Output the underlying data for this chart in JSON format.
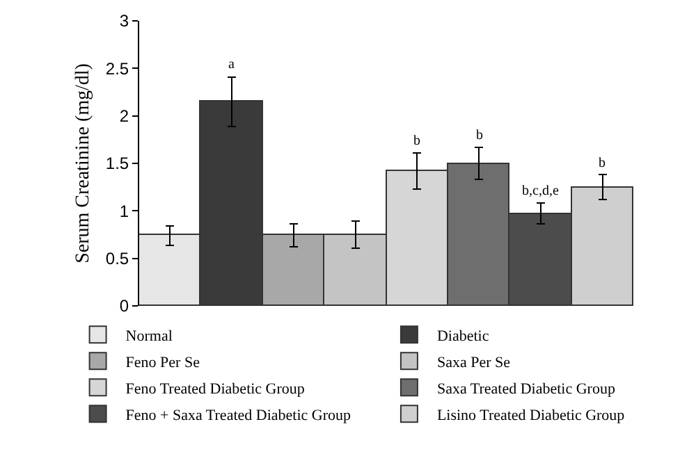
{
  "chart_data": {
    "type": "bar",
    "ylabel": "Serum Creatinine (mg/dl)",
    "categories": [
      null,
      null,
      null,
      null,
      null,
      null,
      null,
      null
    ],
    "ylim": [
      0,
      3
    ],
    "yticks": [
      0,
      0.5,
      1,
      1.5,
      2,
      2.5,
      3
    ],
    "grid": false,
    "legend": "bottom",
    "tick_labels": "y",
    "stacked": true,
    "series": [
      {
        "name": "Normal",
        "color": "#e6e6e6",
        "values": [
          0.74,
          null,
          null,
          null,
          null,
          null,
          null,
          null
        ],
        "errors": [
          0.1,
          null,
          null,
          null,
          null,
          null,
          null,
          null
        ]
      },
      {
        "name": "Diabetic",
        "color": "#3a3a3a",
        "values": [
          null,
          2.15,
          null,
          null,
          null,
          null,
          null,
          null
        ],
        "errors": [
          null,
          0.26,
          null,
          null,
          null,
          null,
          null,
          null
        ],
        "value_labels": [
          null,
          "a",
          null,
          null,
          null,
          null,
          null,
          null
        ]
      },
      {
        "name": "Feno Per Se",
        "color": "#a8a8a8",
        "values": [
          null,
          null,
          0.74,
          null,
          null,
          null,
          null,
          null
        ],
        "errors": [
          null,
          null,
          0.12,
          null,
          null,
          null,
          null,
          null
        ]
      },
      {
        "name": "Saxa Per Se",
        "color": "#c4c4c4",
        "values": [
          null,
          null,
          null,
          0.75,
          null,
          null,
          null,
          null
        ],
        "errors": [
          null,
          null,
          null,
          0.14,
          null,
          null,
          null,
          null
        ]
      },
      {
        "name": "Feno Treated Diabetic Group",
        "color": "#d6d6d6",
        "values": [
          null,
          null,
          null,
          null,
          1.42,
          null,
          null,
          null
        ],
        "errors": [
          null,
          null,
          null,
          null,
          0.19,
          null,
          null,
          null
        ],
        "value_labels": [
          null,
          null,
          null,
          null,
          "b",
          null,
          null,
          null
        ]
      },
      {
        "name": "Saxa Treated Diabetic Group",
        "color": "#6e6e6e",
        "values": [
          null,
          null,
          null,
          null,
          null,
          1.5,
          null,
          null
        ],
        "errors": [
          null,
          null,
          null,
          null,
          null,
          0.17,
          null,
          null
        ],
        "value_labels": [
          null,
          null,
          null,
          null,
          null,
          "b",
          null,
          null
        ]
      },
      {
        "name": "Feno + Saxa Treated Diabetic Group",
        "color": "#4c4c4c",
        "values": [
          null,
          null,
          null,
          null,
          null,
          null,
          0.97,
          null
        ],
        "errors": [
          null,
          null,
          null,
          null,
          null,
          null,
          0.11,
          null
        ],
        "value_labels": [
          null,
          null,
          null,
          null,
          null,
          null,
          "b,c,d,e",
          null
        ]
      },
      {
        "name": "Lisino Treated Diabetic Group",
        "color": "#cfcfcf",
        "values": [
          null,
          null,
          null,
          null,
          null,
          null,
          null,
          1.25
        ],
        "errors": [
          null,
          null,
          null,
          null,
          null,
          null,
          null,
          0.13
        ],
        "value_labels": [
          null,
          null,
          null,
          null,
          null,
          null,
          null,
          "b"
        ]
      }
    ]
  }
}
